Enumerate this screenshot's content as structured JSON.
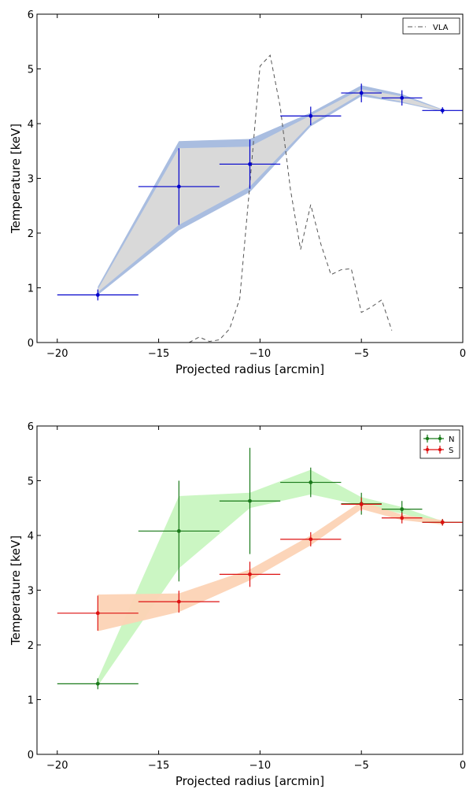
{
  "chart_data": [
    {
      "type": "line",
      "xlabel": "Projected radius [arcmin]",
      "ylabel": "Temperature [keV]",
      "xlim": [
        -21,
        0
      ],
      "ylim": [
        0,
        6
      ],
      "xticks": [
        -20,
        -15,
        -10,
        -5,
        0
      ],
      "yticks": [
        0,
        1,
        2,
        3,
        4,
        5,
        6
      ],
      "xtick_labels": [
        "−20",
        "−15",
        "−10",
        "−5",
        "0"
      ],
      "ytick_labels": [
        "0",
        "1",
        "2",
        "3",
        "4",
        "5",
        "6"
      ],
      "colors": {
        "points": "#0000cc",
        "band": "#a9bde0",
        "band_fill": "#d9d9d9",
        "vla": "#555555"
      },
      "legend": {
        "position": "top-right",
        "entries": [
          {
            "label": "VLA",
            "style": "dash-dot"
          }
        ]
      },
      "series": [
        {
          "name": "",
          "kind": "errorbar",
          "x": [
            -18,
            -14,
            -10.5,
            -7.5,
            -5,
            -3,
            -1
          ],
          "y": [
            0.87,
            2.85,
            3.26,
            4.14,
            4.56,
            4.47,
            4.24
          ],
          "xerr": [
            2,
            2,
            1.5,
            1.5,
            1,
            1,
            1
          ],
          "yerr": [
            0.1,
            0.7,
            0.45,
            0.17,
            0.17,
            0.14,
            0.06
          ]
        },
        {
          "name": "",
          "kind": "band",
          "x": [
            -18,
            -14,
            -10.5,
            -7.5,
            -5,
            -3,
            -1
          ],
          "lower": [
            0.87,
            2.05,
            2.75,
            3.95,
            4.5,
            4.38,
            4.22
          ],
          "upper": [
            1.02,
            3.68,
            3.72,
            4.2,
            4.7,
            4.54,
            4.26
          ],
          "inner_lower": [
            0.92,
            2.15,
            2.85,
            4.0,
            4.55,
            4.4,
            4.23
          ],
          "inner_upper": [
            0.97,
            3.55,
            3.58,
            4.15,
            4.63,
            4.5,
            4.25
          ]
        },
        {
          "name": "VLA",
          "kind": "dashed",
          "x": [
            -13.5,
            -13,
            -12.5,
            -12,
            -11.5,
            -11,
            -10.5,
            -10,
            -9.5,
            -9,
            -8.5,
            -8,
            -7.5,
            -7,
            -6.5,
            -6,
            -5.5,
            -5,
            -4.5,
            -4,
            -3.5
          ],
          "y": [
            0.0,
            0.1,
            0.02,
            0.05,
            0.25,
            0.8,
            2.9,
            5.05,
            5.25,
            4.3,
            2.8,
            1.7,
            2.52,
            1.8,
            1.24,
            1.33,
            1.35,
            0.55,
            0.65,
            0.78,
            0.22
          ]
        }
      ]
    },
    {
      "type": "line",
      "xlabel": "Projected radius [arcmin]",
      "ylabel": "Temperature [keV]",
      "xlim": [
        -21,
        0
      ],
      "ylim": [
        0,
        6
      ],
      "xticks": [
        -20,
        -15,
        -10,
        -5,
        0
      ],
      "yticks": [
        0,
        1,
        2,
        3,
        4,
        5,
        6
      ],
      "xtick_labels": [
        "−20",
        "−15",
        "−10",
        "−5",
        "0"
      ],
      "ytick_labels": [
        "0",
        "1",
        "2",
        "3",
        "4",
        "5",
        "6"
      ],
      "colors": {
        "N": "#1a7a1a",
        "N_band": "#c8f5c0",
        "S": "#dd1111",
        "S_band": "#fcd3b5"
      },
      "legend": {
        "position": "top-right",
        "entries": [
          {
            "label": "N",
            "color": "#1a7a1a"
          },
          {
            "label": "S",
            "color": "#dd1111"
          }
        ]
      },
      "series": [
        {
          "name": "",
          "kind": "band",
          "color": "#c8f5c0",
          "x": [
            -18,
            -14,
            -10.5,
            -7.5,
            -5,
            -3,
            -1
          ],
          "lower": [
            1.25,
            3.4,
            4.5,
            4.75,
            4.55,
            4.4,
            4.2
          ],
          "upper": [
            1.38,
            4.72,
            4.78,
            5.2,
            4.7,
            4.52,
            4.26
          ]
        },
        {
          "name": "",
          "kind": "band",
          "color": "#fcd3b5",
          "x": [
            -18,
            -14,
            -10.5,
            -7.5,
            -5,
            -3,
            -1
          ],
          "lower": [
            2.25,
            2.6,
            3.18,
            3.82,
            4.48,
            4.28,
            4.2
          ],
          "upper": [
            2.92,
            2.94,
            3.38,
            4.0,
            4.62,
            4.38,
            4.28
          ]
        },
        {
          "name": "N",
          "kind": "errorbar",
          "color": "#1a7a1a",
          "x": [
            -18,
            -14,
            -10.5,
            -7.5,
            -5,
            -3,
            -1
          ],
          "y": [
            1.29,
            4.08,
            4.63,
            4.97,
            4.58,
            4.48,
            4.24
          ],
          "xerr": [
            2,
            2,
            1.5,
            1.5,
            1,
            1,
            1
          ],
          "yerr": [
            0.1,
            0.92,
            0.97,
            0.27,
            0.2,
            0.15,
            0.06
          ]
        },
        {
          "name": "S",
          "kind": "errorbar",
          "color": "#dd1111",
          "x": [
            -18,
            -14,
            -10.5,
            -7.5,
            -5,
            -3,
            -1
          ],
          "y": [
            2.58,
            2.79,
            3.29,
            3.93,
            4.57,
            4.32,
            4.24
          ],
          "xerr": [
            2,
            2,
            1.5,
            1.5,
            1,
            1,
            1
          ],
          "yerr": [
            0.32,
            0.2,
            0.23,
            0.13,
            0.12,
            0.1,
            0.06
          ]
        }
      ]
    }
  ]
}
